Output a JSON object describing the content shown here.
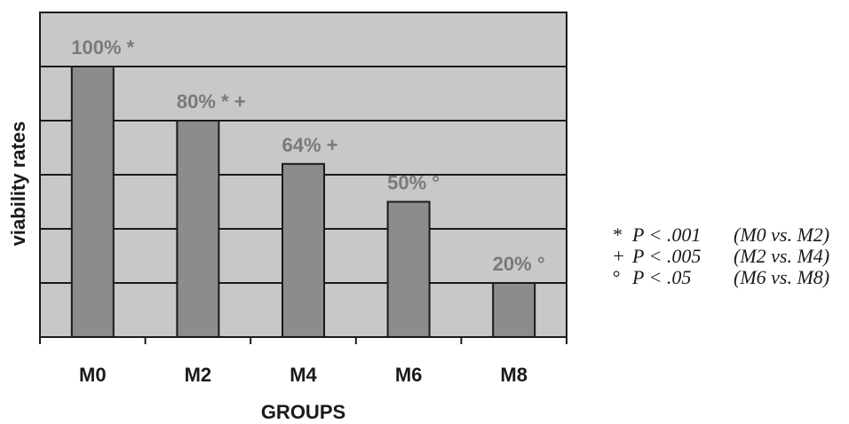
{
  "chart_data": {
    "type": "bar",
    "categories": [
      "M0",
      "M2",
      "M4",
      "M6",
      "M8"
    ],
    "values": [
      100,
      80,
      64,
      50,
      20
    ],
    "data_labels": [
      "100% *",
      "80% * +",
      "64% +",
      "50% °",
      "20% °"
    ],
    "title": "",
    "xlabel": "GROUPS",
    "ylabel": "viability rates",
    "ylim": [
      0,
      120
    ],
    "y_gridlines": [
      20,
      40,
      60,
      80,
      100
    ],
    "grid": true,
    "legend_placement": "right",
    "annotations": [
      {
        "mark": "*",
        "test": "P < .001",
        "comparison": "(M0 vs. M2)"
      },
      {
        "mark": "+",
        "test": "P < .005",
        "comparison": "(M2 vs. M4)"
      },
      {
        "mark": "°",
        "test": "P < .05",
        "comparison": "(M6 vs. M8)"
      }
    ],
    "colors": {
      "plot_background": "#c8c8c8",
      "bar_fill": "#8c8c8c",
      "data_label": "#7a7a7a",
      "line": "#1a1a1a"
    }
  }
}
